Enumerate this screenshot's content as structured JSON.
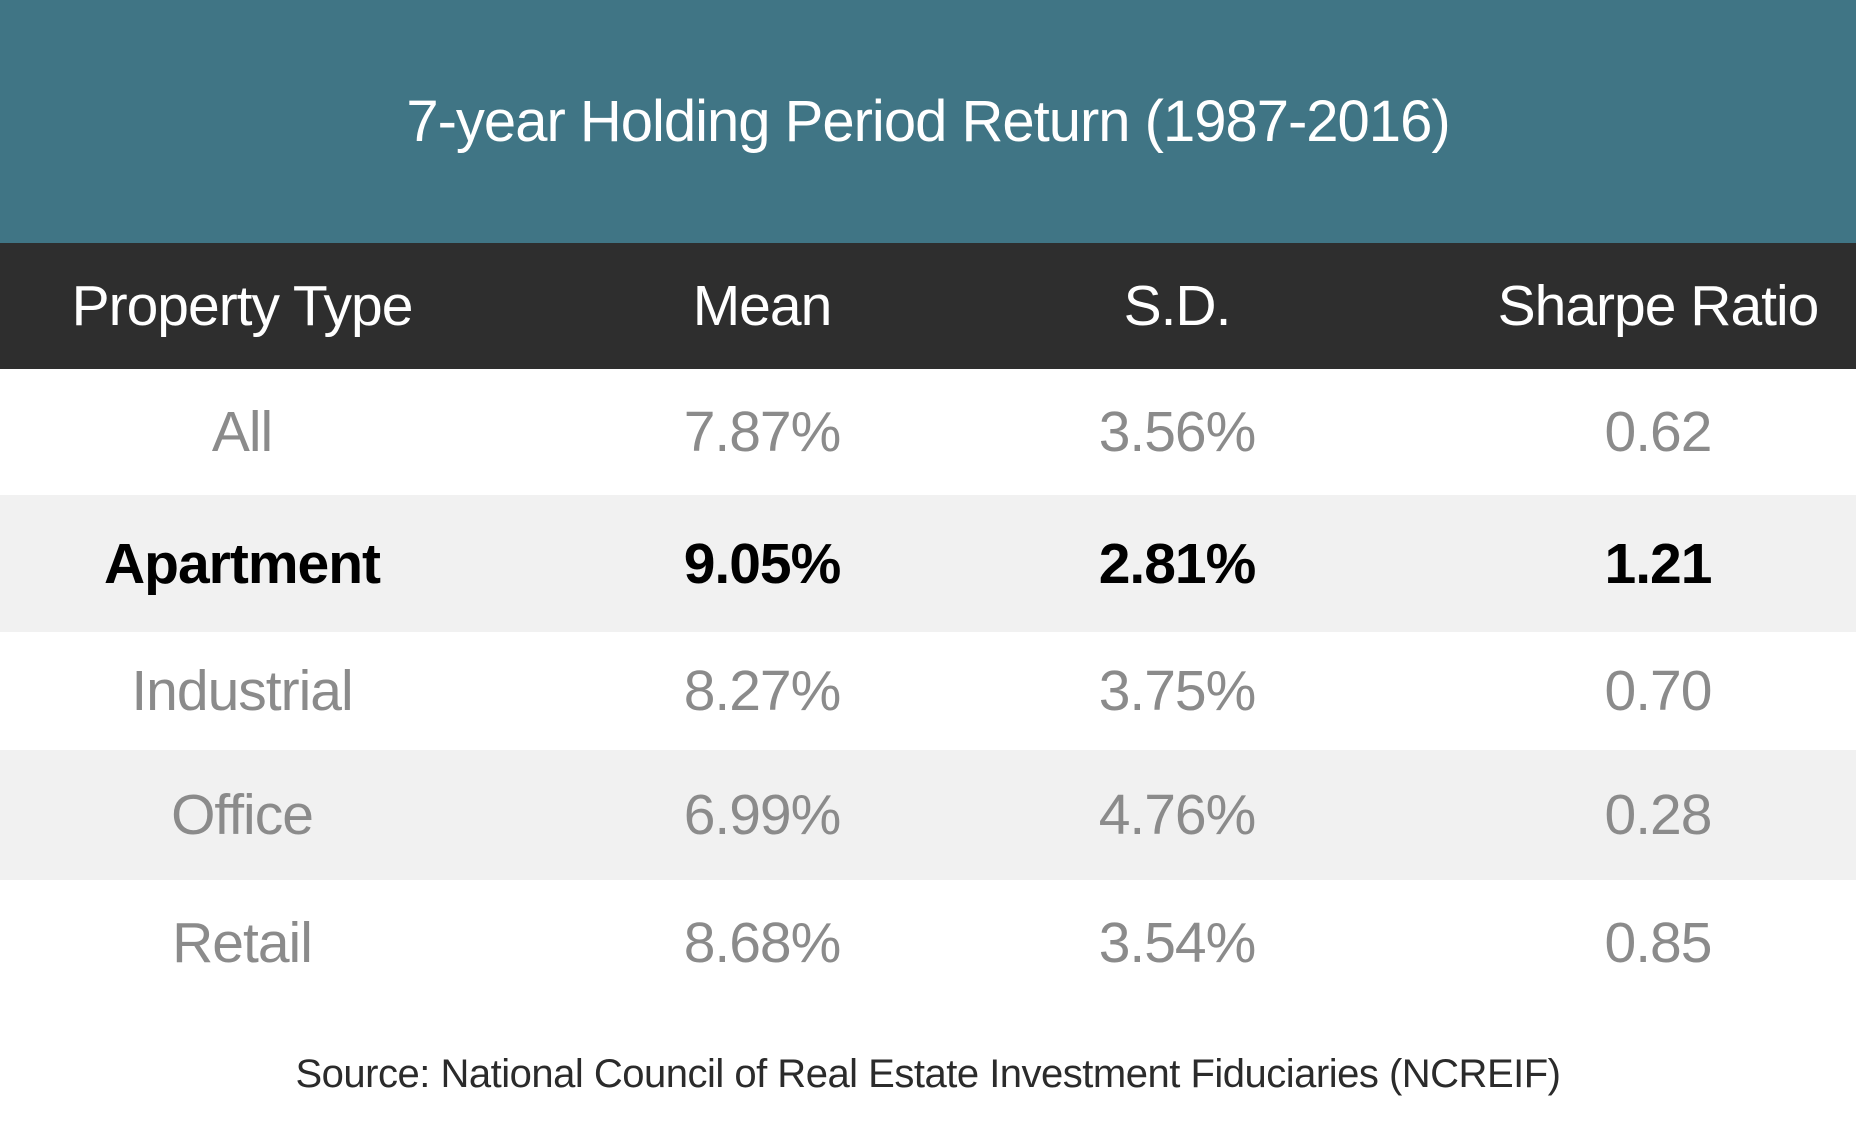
{
  "title": "7-year Holding Period Return (1987-2016)",
  "table": {
    "columns": {
      "property_type": "Property Type",
      "mean": "Mean",
      "sd": "S.D.",
      "sharpe_ratio": "Sharpe Ratio"
    },
    "rows": [
      {
        "property_type": "All",
        "mean": "7.87%",
        "sd": "3.56%",
        "sharpe_ratio": "0.62",
        "emphasis": false
      },
      {
        "property_type": "Apartment",
        "mean": "9.05%",
        "sd": "2.81%",
        "sharpe_ratio": "1.21",
        "emphasis": true
      },
      {
        "property_type": "Industrial",
        "mean": "8.27%",
        "sd": "3.75%",
        "sharpe_ratio": "0.70",
        "emphasis": false
      },
      {
        "property_type": "Office",
        "mean": "6.99%",
        "sd": "4.76%",
        "sharpe_ratio": "0.28",
        "emphasis": false
      },
      {
        "property_type": "Retail",
        "mean": "8.68%",
        "sd": "3.54%",
        "sharpe_ratio": "0.85",
        "emphasis": false
      }
    ]
  },
  "source": "Source: National Council of Real Estate Investment Fiduciaries (NCREIF)",
  "colors": {
    "title_bg": "#407585",
    "header_bg": "#2e2e2e",
    "alt_row_bg": "#f1f1f1",
    "muted_text": "#8b8b8b",
    "bold_text": "#000000",
    "white": "#ffffff"
  },
  "chart_data": {
    "type": "table",
    "title": "7-year Holding Period Return (1987-2016)",
    "columns": [
      "Property Type",
      "Mean",
      "S.D.",
      "Sharpe Ratio"
    ],
    "rows": [
      [
        "All",
        "7.87%",
        "3.56%",
        "0.62"
      ],
      [
        "Apartment",
        "9.05%",
        "2.81%",
        "1.21"
      ],
      [
        "Industrial",
        "8.27%",
        "3.75%",
        "0.70"
      ],
      [
        "Office",
        "6.99%",
        "4.76%",
        "0.28"
      ],
      [
        "Retail",
        "8.68%",
        "3.54%",
        "0.85"
      ]
    ],
    "series_units": {
      "Mean": "percent",
      "S.D.": "percent",
      "Sharpe Ratio": "ratio"
    },
    "numeric_rows": [
      {
        "property_type": "All",
        "mean_pct": 7.87,
        "sd_pct": 3.56,
        "sharpe": 0.62
      },
      {
        "property_type": "Apartment",
        "mean_pct": 9.05,
        "sd_pct": 2.81,
        "sharpe": 1.21
      },
      {
        "property_type": "Industrial",
        "mean_pct": 8.27,
        "sd_pct": 3.75,
        "sharpe": 0.7
      },
      {
        "property_type": "Office",
        "mean_pct": 6.99,
        "sd_pct": 4.76,
        "sharpe": 0.28
      },
      {
        "property_type": "Retail",
        "mean_pct": 8.68,
        "sd_pct": 3.54,
        "sharpe": 0.85
      }
    ],
    "highlighted_row": "Apartment",
    "source": "Source: National Council of Real Estate Investment Fiduciaries (NCREIF)"
  }
}
